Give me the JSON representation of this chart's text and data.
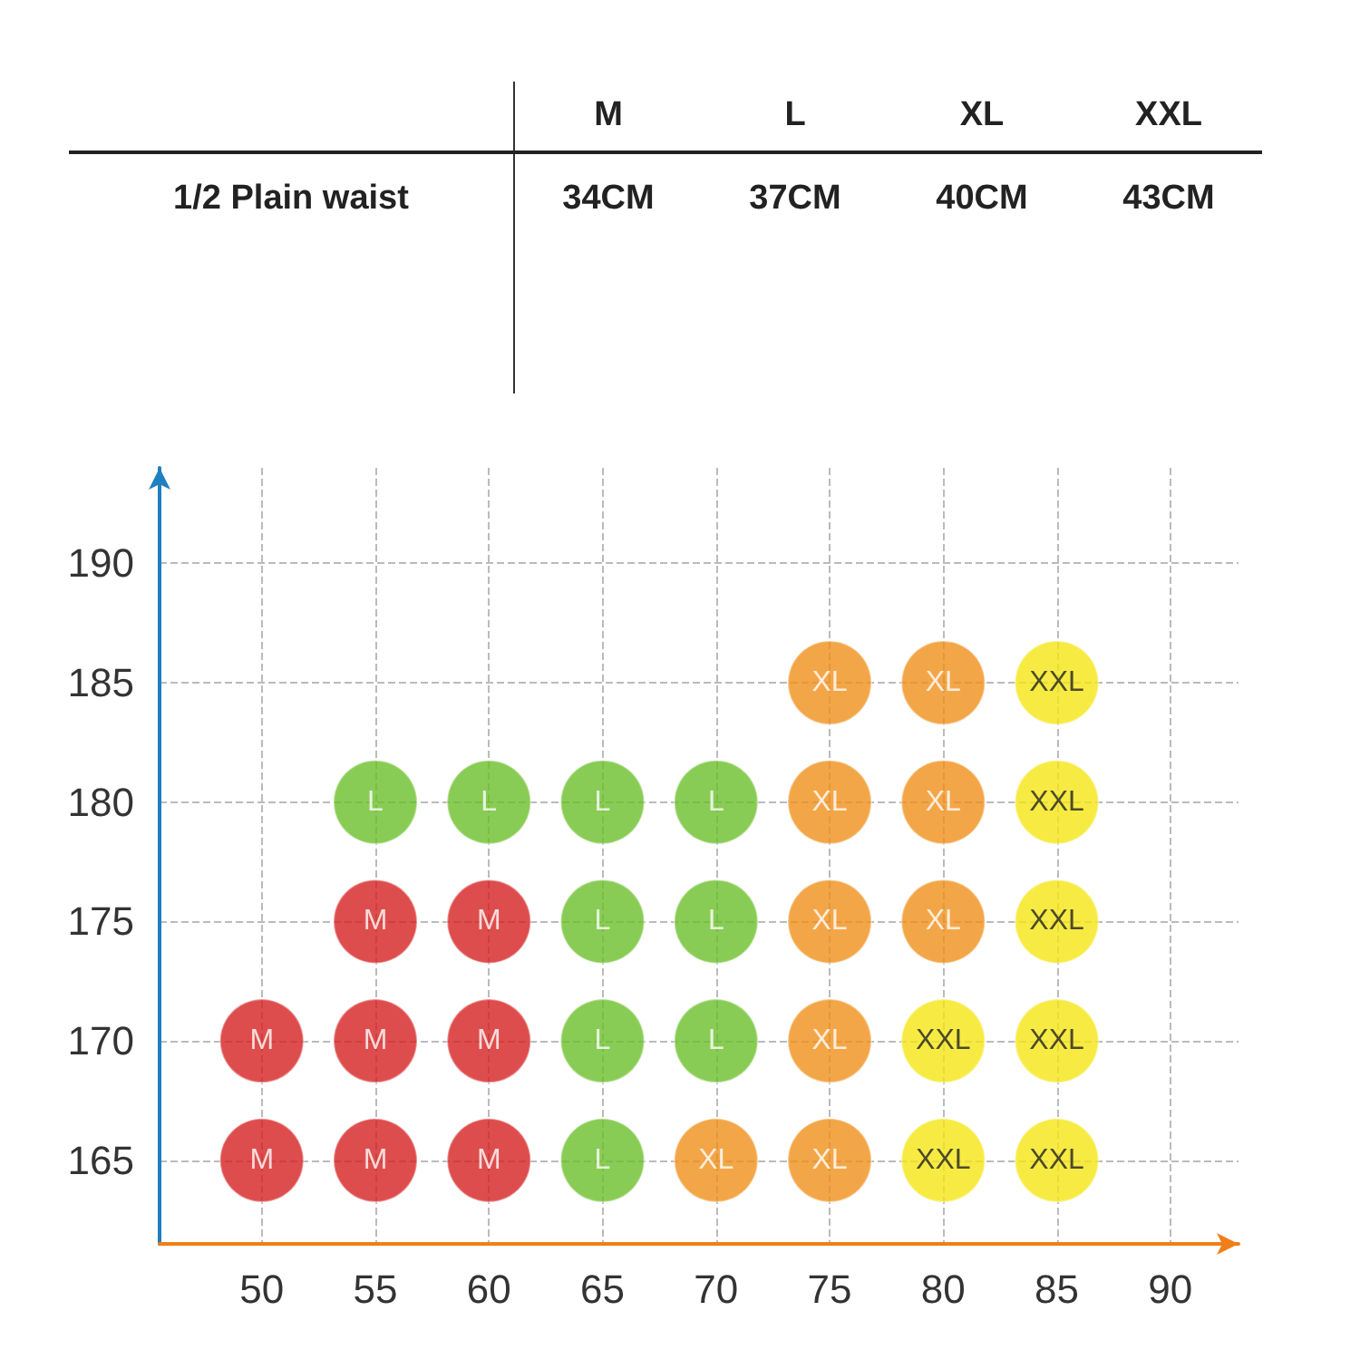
{
  "chart_data": [
    {
      "type": "heatmap",
      "categories": [
        "M",
        "L",
        "XL",
        "XXL"
      ],
      "y_categories": [
        "1/2 Plain waist"
      ],
      "cells": [
        [
          34,
          37,
          40,
          43
        ]
      ],
      "cell_labels": [
        [
          "34CM",
          "37CM",
          "40CM",
          "43CM"
        ]
      ]
    },
    {
      "type": "scatter",
      "marker": "circle",
      "grid": true,
      "legend": false,
      "xlim": [
        45.5,
        93
      ],
      "xticks": [
        50,
        55,
        60,
        65,
        70,
        75,
        80,
        85,
        90
      ],
      "ylim": [
        161.5,
        194
      ],
      "yticks": [
        165,
        170,
        175,
        180,
        185,
        190
      ],
      "series": [
        {
          "name": "M",
          "color": "#d62020",
          "x": [
            50,
            55,
            60,
            50,
            55,
            60,
            55,
            60
          ],
          "values": [
            165,
            165,
            165,
            170,
            170,
            170,
            175,
            175
          ]
        },
        {
          "name": "L",
          "color": "#6cbf2a",
          "x": [
            65,
            65,
            70,
            65,
            70,
            55,
            60,
            65,
            70
          ],
          "values": [
            165,
            170,
            170,
            175,
            175,
            180,
            180,
            180,
            180
          ]
        },
        {
          "name": "XL",
          "color": "#f0901a",
          "x": [
            70,
            75,
            75,
            75,
            80,
            75,
            80,
            75,
            80
          ],
          "values": [
            165,
            165,
            170,
            175,
            175,
            180,
            180,
            185,
            185
          ]
        },
        {
          "name": "XXL",
          "color": "#f5e614",
          "x": [
            80,
            85,
            80,
            85,
            85,
            85,
            85
          ],
          "values": [
            165,
            165,
            170,
            170,
            175,
            180,
            185
          ]
        }
      ]
    }
  ]
}
